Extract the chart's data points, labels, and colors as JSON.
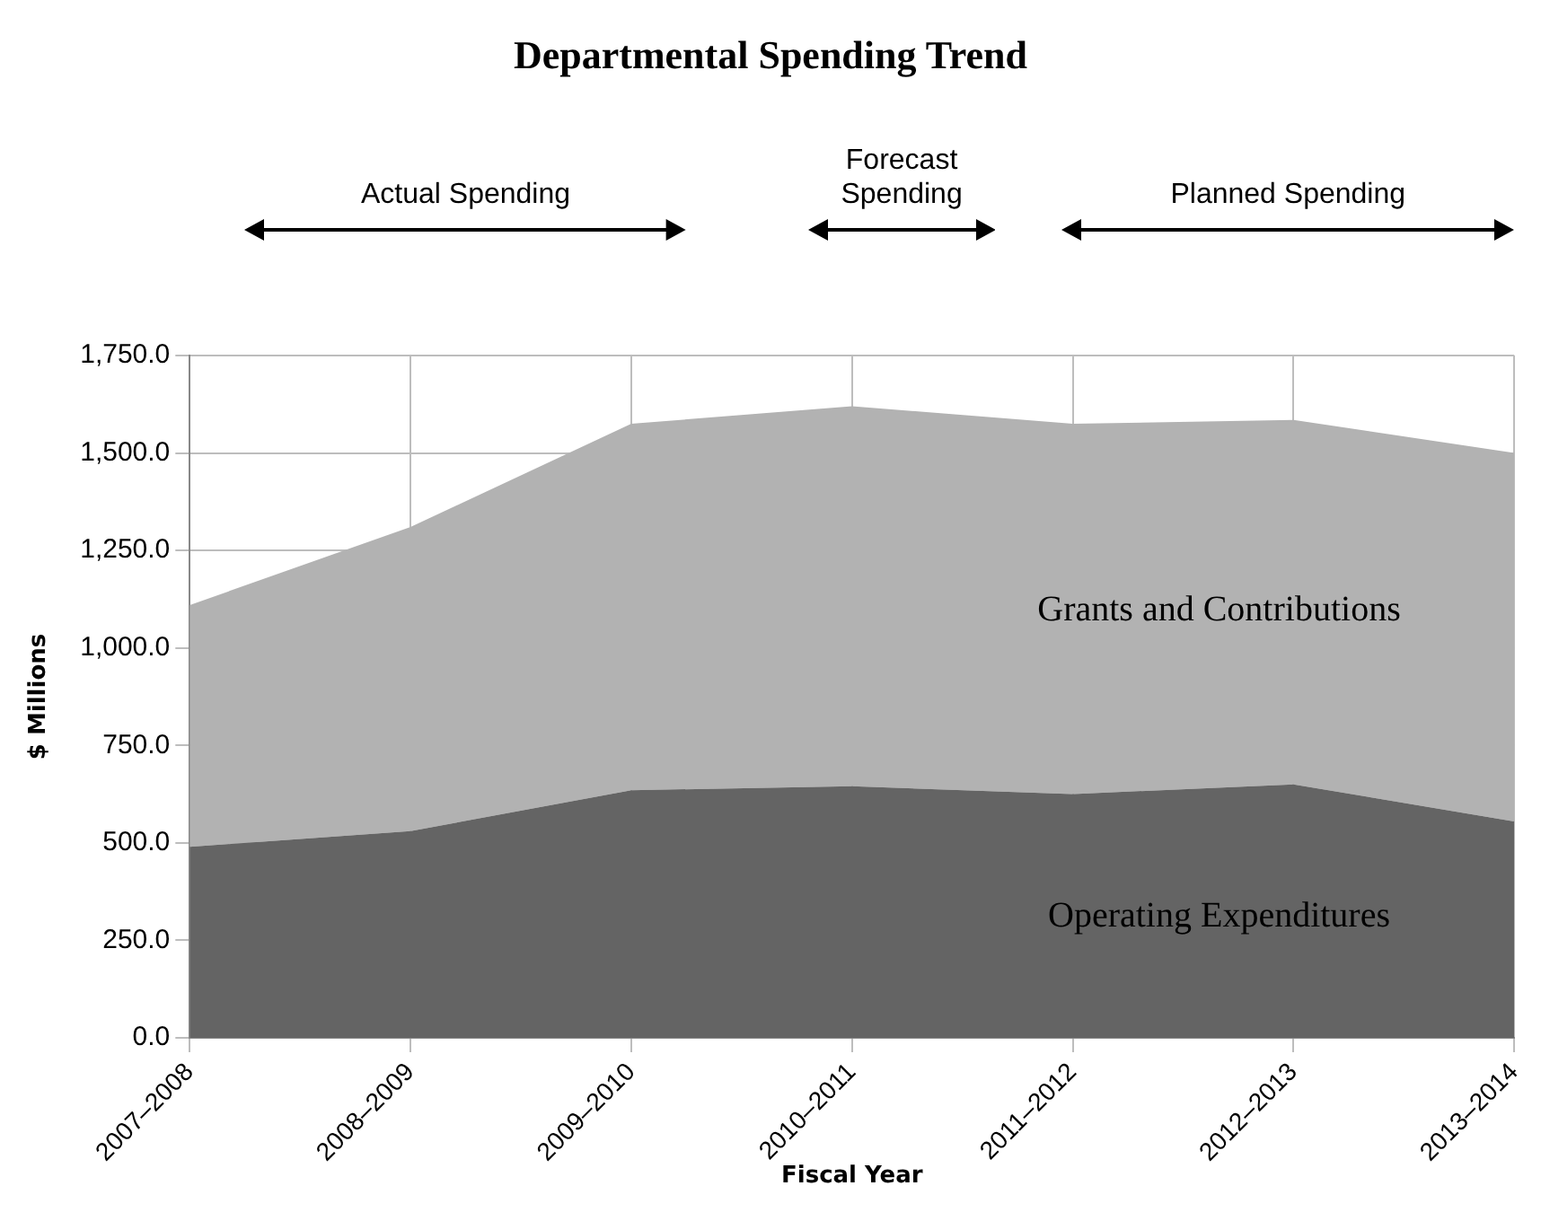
{
  "chart_data": {
    "type": "area",
    "title": "Departmental Spending Trend",
    "xlabel": "Fiscal Year",
    "ylabel": "$ Millions",
    "categories": [
      "2007–2008",
      "2008–2009",
      "2009–2010",
      "2010–2011",
      "2011–2012",
      "2012–2013",
      "2013–2014"
    ],
    "stacked": true,
    "series": [
      {
        "name": "Operating Expenditures",
        "color": "#646464",
        "values": [
          490,
          530,
          635,
          645,
          625,
          650,
          555
        ]
      },
      {
        "name": "Grants and Contributions",
        "color": "#b2b2b2",
        "values": [
          620,
          780,
          940,
          975,
          950,
          935,
          945
        ]
      }
    ],
    "ylim": [
      0,
      1750
    ],
    "yticks": [
      {
        "value": 0,
        "label": "0.0"
      },
      {
        "value": 250,
        "label": "250.0"
      },
      {
        "value": 500,
        "label": "500.0"
      },
      {
        "value": 750,
        "label": "750.0"
      },
      {
        "value": 1000,
        "label": "1,000.0"
      },
      {
        "value": 1250,
        "label": "1,250.0"
      },
      {
        "value": 1500,
        "label": "1,500.0"
      },
      {
        "value": 1750,
        "label": "1,750.0"
      }
    ],
    "grid": true,
    "legend": false,
    "annotations": [
      "Actual Spending",
      "Forecast Spending",
      "Planned Spending"
    ]
  }
}
